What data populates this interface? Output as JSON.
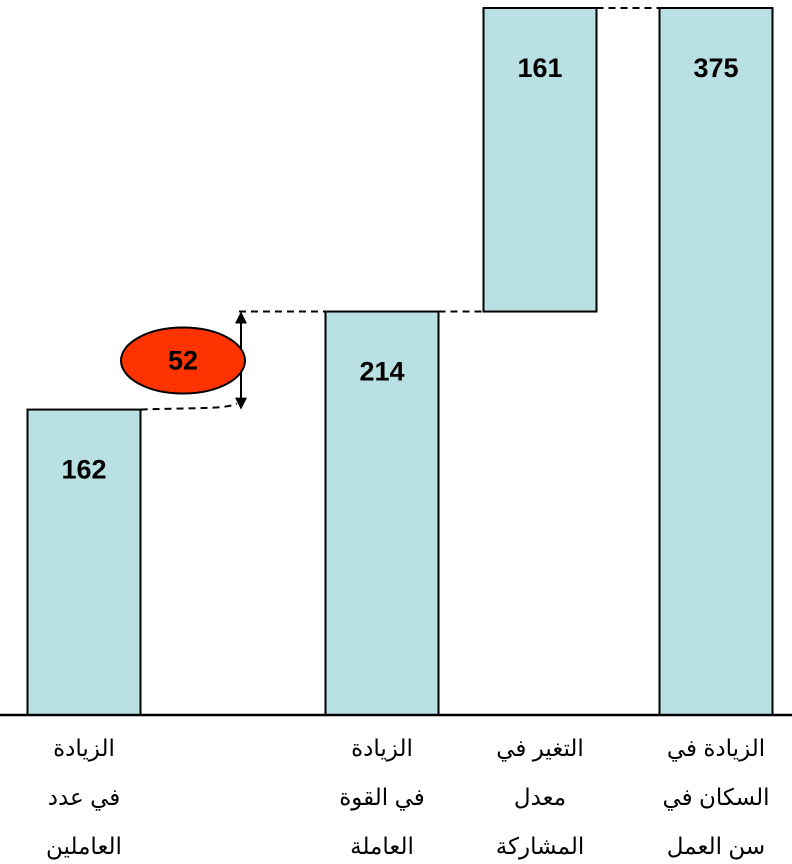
{
  "chart_data": {
    "type": "waterfall",
    "categories": [
      [
        "الزيادة",
        "في عدد",
        "العاملين"
      ],
      [
        "الزيادة",
        "في القوة",
        "العاملة"
      ],
      [
        "التغير في",
        "معدل",
        "المشاركة"
      ],
      [
        "الزيادة في",
        "السكان في",
        "سن العمل"
      ]
    ],
    "values": [
      162,
      214,
      161,
      375
    ],
    "measures": [
      "total",
      "total",
      "relative",
      "total"
    ],
    "color": "#b9e0e3",
    "ylim": [
      0,
      375
    ],
    "annotation": {
      "value": 52,
      "color": "#ff3300"
    }
  }
}
